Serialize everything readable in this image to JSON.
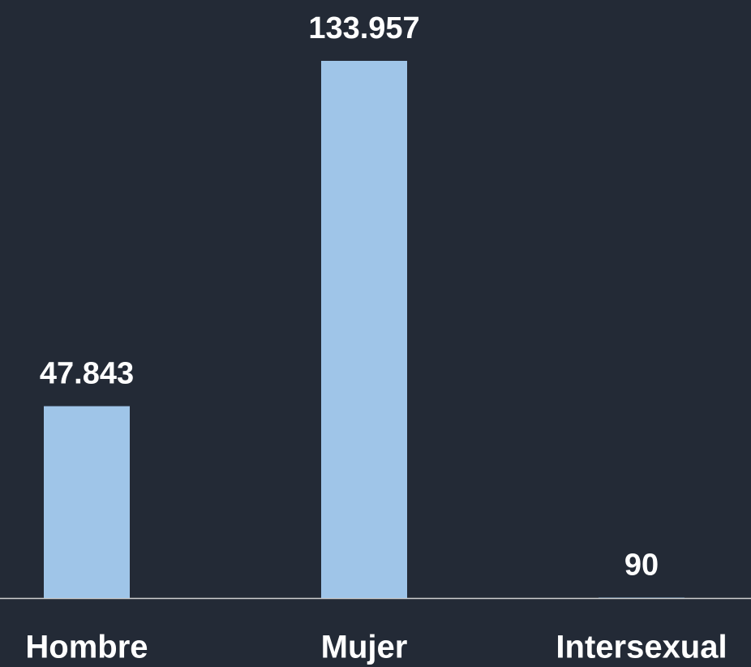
{
  "chart_data": {
    "type": "bar",
    "categories": [
      "Hombre",
      "Mujer",
      "Intersexual"
    ],
    "values": [
      47843,
      133957,
      90
    ],
    "value_labels": [
      "47.843",
      "133.957",
      "90"
    ],
    "color": "#9fc5e8"
  }
}
